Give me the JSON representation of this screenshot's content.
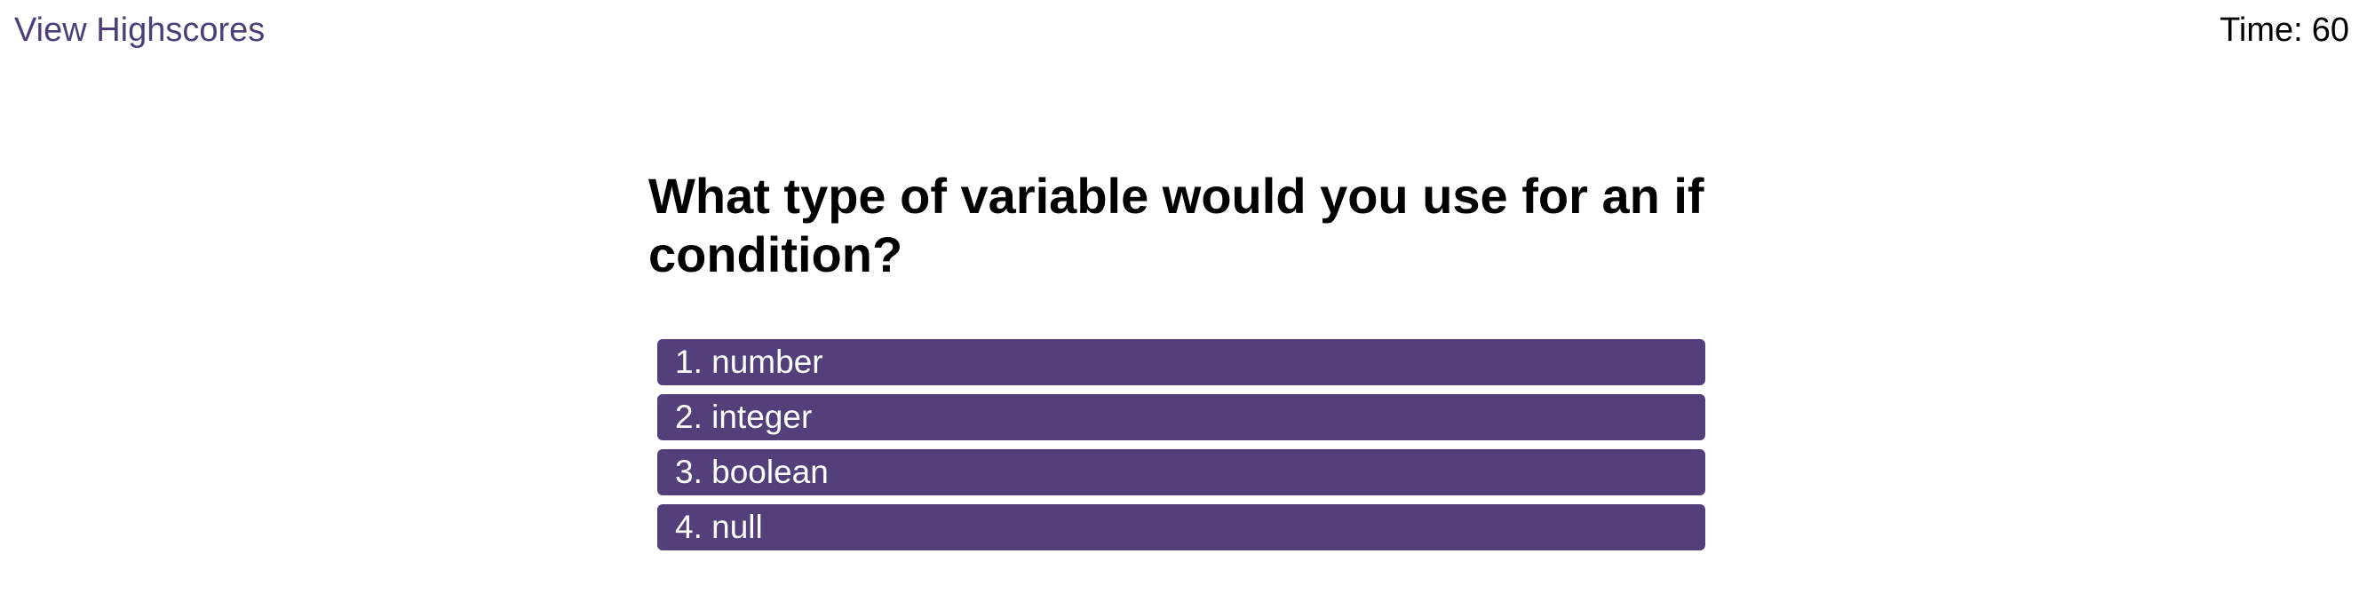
{
  "header": {
    "highscores_label": "View Highscores",
    "timer_label": "Time:",
    "timer_value": "60"
  },
  "quiz": {
    "question": "What type of variable would you use for an if condition?",
    "choices": [
      "1. number",
      "2. integer",
      "3. boolean",
      "4. null"
    ]
  },
  "colors": {
    "accent": "#533f7a",
    "link": "#4e3d78",
    "text": "#000000",
    "background": "#ffffff"
  }
}
